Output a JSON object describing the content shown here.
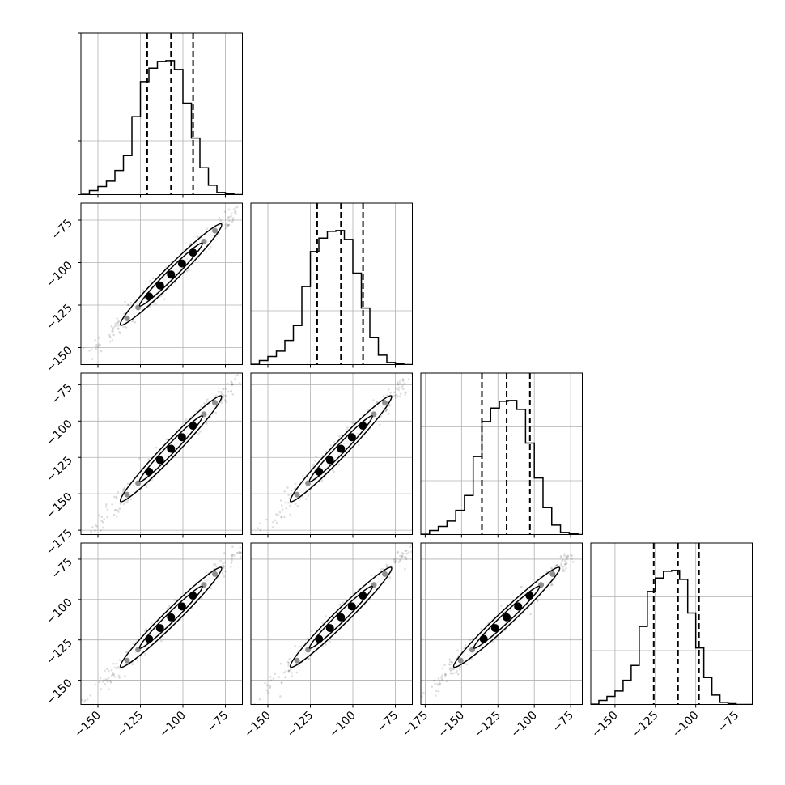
{
  "chart_data": {
    "type": "corner",
    "grid": true,
    "quantile_lines": "dashed",
    "parameters": [
      {
        "ticks": [
          -150,
          -125,
          -100,
          -75
        ],
        "range": [
          -160,
          -65
        ],
        "quantiles": [
          -121,
          -107,
          -94
        ],
        "hist_bins": [
          -160,
          -155,
          -150,
          -145,
          -140,
          -135,
          -130,
          -125,
          -120,
          -115,
          -110,
          -105,
          -100,
          -95,
          -90,
          -85,
          -80,
          -75,
          -70,
          -65
        ],
        "hist_counts": [
          1,
          15,
          30,
          50,
          90,
          145,
          290,
          420,
          470,
          495,
          498,
          465,
          340,
          210,
          100,
          35,
          8,
          3,
          0
        ],
        "hist_max": 600
      },
      {
        "ticks": [
          -150,
          -125,
          -100,
          -75
        ],
        "range": [
          -160,
          -65
        ],
        "quantiles": [
          -121,
          -107,
          -94
        ],
        "hist_bins": [
          -160,
          -155,
          -150,
          -145,
          -140,
          -135,
          -130,
          -125,
          -120,
          -115,
          -110,
          -105,
          -100,
          -95,
          -90,
          -85,
          -80,
          -75,
          -70,
          -65
        ],
        "hist_counts": [
          1,
          15,
          30,
          50,
          90,
          145,
          290,
          420,
          470,
          495,
          498,
          465,
          340,
          210,
          100,
          35,
          8,
          3,
          0
        ],
        "hist_max": 600
      },
      {
        "ticks": [
          -175,
          -150,
          -125,
          -100,
          -75
        ],
        "range": [
          -178,
          -67
        ],
        "quantiles": [
          -136,
          -119,
          -103
        ],
        "hist_bins": [
          -178,
          -172,
          -166,
          -160,
          -154,
          -148,
          -142,
          -136,
          -130,
          -124,
          -118,
          -112,
          -106,
          -100,
          -94,
          -88,
          -82,
          -76,
          -70,
          -67
        ],
        "hist_counts": [
          1,
          15,
          30,
          50,
          90,
          145,
          290,
          420,
          470,
          495,
          498,
          465,
          340,
          210,
          100,
          35,
          8,
          3,
          0
        ],
        "hist_max": 600
      },
      {
        "ticks": [
          -150,
          -125,
          -100,
          -75
        ],
        "range": [
          -165,
          -65
        ],
        "quantiles": [
          -126,
          -111,
          -98
        ],
        "hist_bins": [
          -165,
          -160,
          -155,
          -150,
          -145,
          -140,
          -135,
          -130,
          -125,
          -120,
          -115,
          -110,
          -105,
          -100,
          -95,
          -90,
          -85,
          -80,
          -75,
          -65
        ],
        "hist_counts": [
          1,
          15,
          30,
          50,
          90,
          145,
          290,
          420,
          470,
          495,
          498,
          465,
          340,
          210,
          100,
          35,
          8,
          3,
          0
        ],
        "hist_max": 600
      }
    ],
    "axis_labels": [],
    "title": ""
  }
}
